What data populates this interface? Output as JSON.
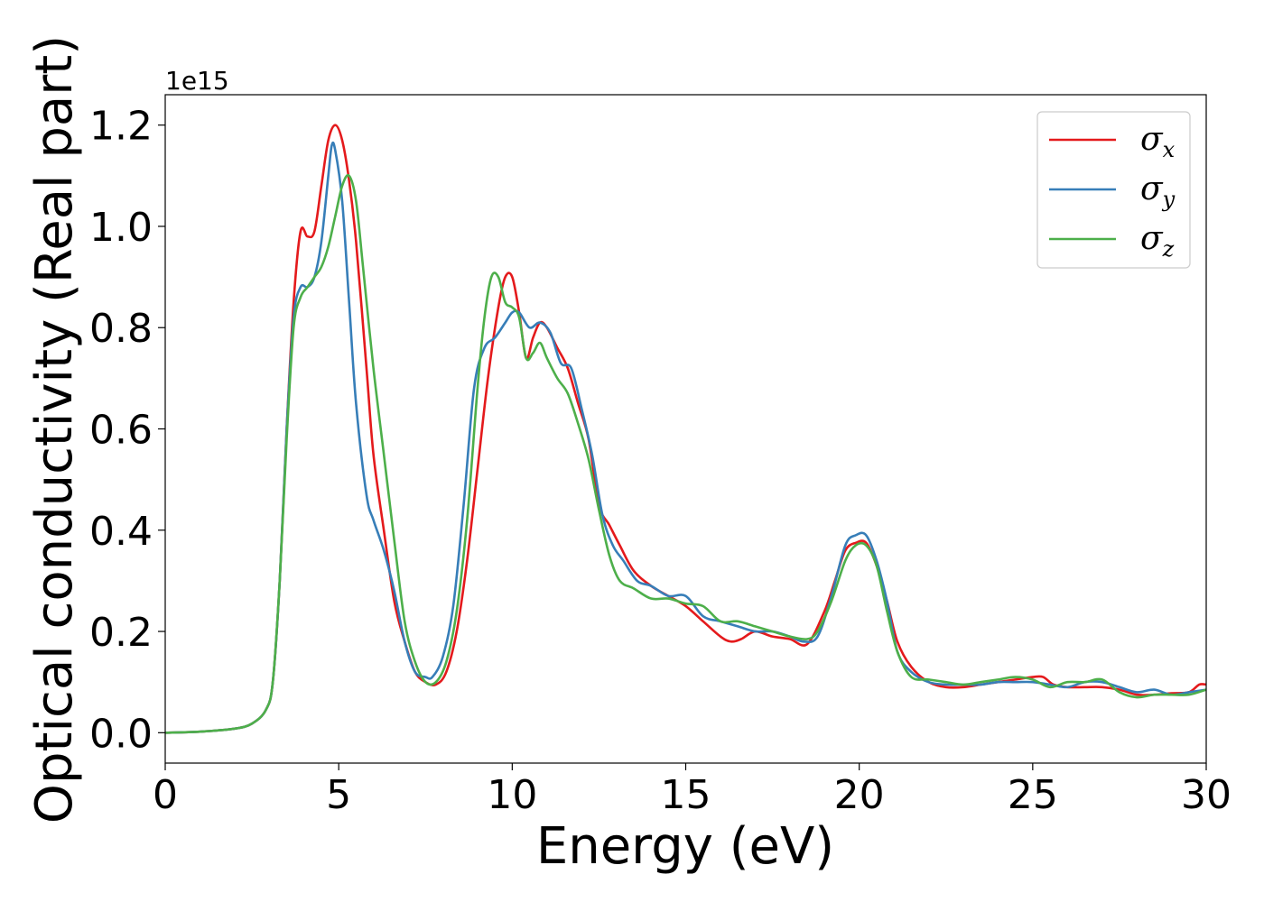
{
  "chart_data": {
    "type": "line",
    "title": "",
    "xlabel": "Energy (eV)",
    "ylabel": "Optical conductivity (Real part)",
    "y_offset_label": "1e15",
    "xlim": [
      0,
      30
    ],
    "ylim": [
      -0.06,
      1.26
    ],
    "xticks": [
      0,
      5,
      10,
      15,
      20,
      25,
      30
    ],
    "yticks": [
      0.0,
      0.2,
      0.4,
      0.6,
      0.8,
      1.0,
      1.2
    ],
    "grid": false,
    "legend_position": "top-right",
    "series": [
      {
        "name": "σx",
        "symbol": "σ",
        "subscript": "x",
        "color": "#e41a1c",
        "x": [
          0,
          1,
          2,
          2.5,
          2.9,
          3.1,
          3.3,
          3.5,
          3.7,
          3.9,
          4.1,
          4.3,
          4.5,
          4.7,
          4.9,
          5.1,
          5.3,
          5.5,
          5.8,
          6.0,
          6.3,
          6.6,
          6.9,
          7.2,
          7.5,
          7.8,
          8.1,
          8.4,
          8.7,
          9.0,
          9.3,
          9.6,
          9.8,
          10.0,
          10.2,
          10.4,
          10.6,
          10.8,
          11.0,
          11.3,
          11.6,
          11.9,
          12.2,
          12.5,
          12.8,
          13.1,
          13.5,
          14.0,
          14.5,
          15.0,
          15.5,
          16.0,
          16.3,
          16.6,
          17.0,
          17.5,
          18.0,
          18.5,
          19.0,
          19.3,
          19.6,
          19.9,
          20.2,
          20.5,
          20.8,
          21.1,
          21.5,
          22.0,
          22.5,
          23.0,
          23.5,
          24.0,
          24.5,
          25.0,
          25.3,
          25.6,
          26.0,
          26.5,
          27.0,
          27.5,
          28.0,
          28.5,
          29.0,
          29.5,
          29.8,
          30.0
        ],
        "y": [
          0.0,
          0.002,
          0.008,
          0.018,
          0.045,
          0.1,
          0.3,
          0.6,
          0.85,
          0.99,
          0.98,
          0.99,
          1.08,
          1.17,
          1.2,
          1.17,
          1.09,
          0.97,
          0.72,
          0.55,
          0.4,
          0.26,
          0.18,
          0.12,
          0.1,
          0.095,
          0.12,
          0.2,
          0.34,
          0.52,
          0.7,
          0.84,
          0.9,
          0.9,
          0.83,
          0.74,
          0.78,
          0.81,
          0.8,
          0.76,
          0.72,
          0.65,
          0.58,
          0.45,
          0.41,
          0.37,
          0.32,
          0.29,
          0.27,
          0.25,
          0.22,
          0.19,
          0.18,
          0.185,
          0.2,
          0.19,
          0.185,
          0.175,
          0.24,
          0.3,
          0.36,
          0.375,
          0.375,
          0.33,
          0.26,
          0.18,
          0.13,
          0.1,
          0.09,
          0.09,
          0.095,
          0.1,
          0.105,
          0.11,
          0.11,
          0.095,
          0.09,
          0.09,
          0.09,
          0.085,
          0.075,
          0.075,
          0.078,
          0.08,
          0.095,
          0.095
        ]
      },
      {
        "name": "σy",
        "symbol": "σ",
        "subscript": "y",
        "color": "#377eb8",
        "x": [
          0,
          1,
          2,
          2.5,
          2.9,
          3.1,
          3.3,
          3.5,
          3.7,
          3.9,
          4.1,
          4.3,
          4.5,
          4.7,
          4.8,
          4.9,
          5.1,
          5.3,
          5.5,
          5.8,
          6.0,
          6.3,
          6.6,
          6.9,
          7.2,
          7.5,
          7.7,
          8.0,
          8.3,
          8.6,
          8.9,
          9.2,
          9.5,
          9.8,
          10.0,
          10.2,
          10.5,
          10.8,
          11.1,
          11.4,
          11.7,
          12.0,
          12.3,
          12.6,
          12.9,
          13.2,
          13.6,
          14.0,
          14.5,
          15.0,
          15.5,
          16.0,
          16.5,
          17.0,
          17.5,
          18.0,
          18.4,
          18.8,
          19.2,
          19.6,
          19.9,
          20.2,
          20.5,
          20.8,
          21.1,
          21.5,
          22.0,
          22.5,
          23.0,
          23.5,
          24.0,
          24.5,
          25.0,
          25.5,
          26.0,
          26.5,
          27.0,
          27.5,
          28.0,
          28.5,
          29.0,
          29.5,
          30.0
        ],
        "y": [
          0.0,
          0.002,
          0.008,
          0.018,
          0.045,
          0.1,
          0.3,
          0.6,
          0.82,
          0.88,
          0.88,
          0.9,
          0.97,
          1.1,
          1.16,
          1.15,
          1.05,
          0.85,
          0.65,
          0.47,
          0.42,
          0.36,
          0.28,
          0.18,
          0.12,
          0.11,
          0.11,
          0.15,
          0.25,
          0.45,
          0.68,
          0.76,
          0.78,
          0.81,
          0.83,
          0.83,
          0.8,
          0.81,
          0.79,
          0.73,
          0.72,
          0.64,
          0.55,
          0.43,
          0.37,
          0.34,
          0.3,
          0.29,
          0.27,
          0.27,
          0.23,
          0.22,
          0.21,
          0.2,
          0.2,
          0.19,
          0.18,
          0.19,
          0.27,
          0.37,
          0.39,
          0.39,
          0.34,
          0.26,
          0.16,
          0.12,
          0.1,
          0.095,
          0.095,
          0.095,
          0.1,
          0.1,
          0.1,
          0.095,
          0.09,
          0.1,
          0.1,
          0.09,
          0.08,
          0.085,
          0.075,
          0.08,
          0.085
        ]
      },
      {
        "name": "σz",
        "symbol": "σ",
        "subscript": "z",
        "color": "#4daf4a",
        "x": [
          0,
          1,
          2,
          2.5,
          2.9,
          3.1,
          3.3,
          3.5,
          3.7,
          3.9,
          4.1,
          4.3,
          4.5,
          4.7,
          4.9,
          5.1,
          5.3,
          5.5,
          5.7,
          6.0,
          6.3,
          6.6,
          6.9,
          7.2,
          7.5,
          7.8,
          8.1,
          8.4,
          8.7,
          9.0,
          9.2,
          9.4,
          9.6,
          9.8,
          10.0,
          10.2,
          10.4,
          10.6,
          10.8,
          11.0,
          11.3,
          11.6,
          11.9,
          12.2,
          12.5,
          12.8,
          13.1,
          13.5,
          14.0,
          14.5,
          15.0,
          15.5,
          16.0,
          16.5,
          17.0,
          17.5,
          18.0,
          18.5,
          18.8,
          19.2,
          19.6,
          19.9,
          20.2,
          20.5,
          20.8,
          21.1,
          21.5,
          22.0,
          22.5,
          23.0,
          23.5,
          24.0,
          24.5,
          25.0,
          25.5,
          26.0,
          26.5,
          27.0,
          27.5,
          28.0,
          28.5,
          29.0,
          29.5,
          30.0
        ],
        "y": [
          0.0,
          0.002,
          0.008,
          0.018,
          0.045,
          0.1,
          0.3,
          0.58,
          0.8,
          0.86,
          0.88,
          0.9,
          0.92,
          0.96,
          1.02,
          1.08,
          1.1,
          1.05,
          0.92,
          0.72,
          0.55,
          0.38,
          0.22,
          0.14,
          0.1,
          0.1,
          0.14,
          0.24,
          0.42,
          0.68,
          0.82,
          0.9,
          0.9,
          0.85,
          0.84,
          0.82,
          0.74,
          0.75,
          0.77,
          0.74,
          0.7,
          0.67,
          0.61,
          0.54,
          0.44,
          0.35,
          0.3,
          0.285,
          0.265,
          0.265,
          0.255,
          0.25,
          0.22,
          0.22,
          0.21,
          0.2,
          0.19,
          0.185,
          0.2,
          0.26,
          0.34,
          0.37,
          0.37,
          0.33,
          0.24,
          0.16,
          0.11,
          0.105,
          0.1,
          0.095,
          0.1,
          0.105,
          0.11,
          0.105,
          0.09,
          0.1,
          0.1,
          0.105,
          0.08,
          0.07,
          0.075,
          0.075,
          0.075,
          0.085
        ]
      }
    ]
  }
}
